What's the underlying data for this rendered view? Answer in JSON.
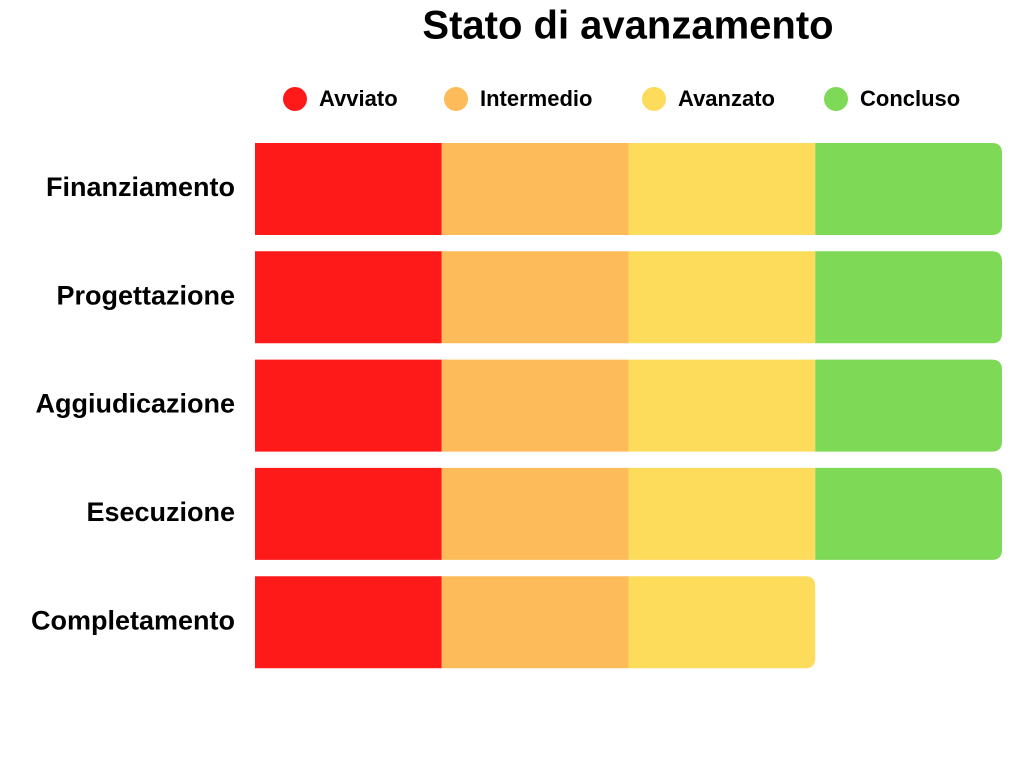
{
  "chart_data": {
    "type": "stacked-bar-horizontal",
    "title": "Stato di avanzamento",
    "categories": [
      "Finanziamento",
      "Progettazione",
      "Aggiudicazione",
      "Esecuzione",
      "Completamento"
    ],
    "series": [
      {
        "name": "Avviato",
        "color": "#ff1a1a",
        "values": [
          1,
          1,
          1,
          1,
          1
        ]
      },
      {
        "name": "Intermedio",
        "color": "#fdbb5a",
        "values": [
          1,
          1,
          1,
          1,
          1
        ]
      },
      {
        "name": "Avanzato",
        "color": "#fddc5c",
        "values": [
          1,
          1,
          1,
          1,
          1
        ]
      },
      {
        "name": "Concluso",
        "color": "#7ed957",
        "values": [
          1,
          1,
          1,
          1,
          0
        ]
      }
    ],
    "xlim": [
      0,
      4
    ],
    "legend": "top"
  }
}
